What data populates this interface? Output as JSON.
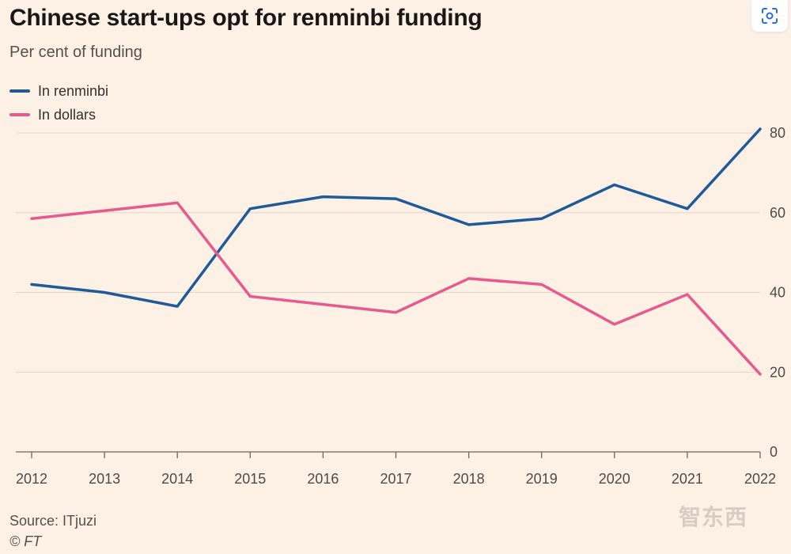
{
  "chart_data": {
    "type": "line",
    "title": "Chinese start-ups opt for renminbi funding",
    "subtitle": "Per cent of funding",
    "x": [
      "2012",
      "2013",
      "2014",
      "2015",
      "2016",
      "2017",
      "2018",
      "2019",
      "2020",
      "2021",
      "2022"
    ],
    "series": [
      {
        "name": "In renminbi",
        "color": "#1f5a99",
        "values": [
          42,
          40,
          36.5,
          61,
          64,
          63.5,
          57,
          58.5,
          67,
          61,
          81
        ]
      },
      {
        "name": "In dollars",
        "color": "#e8598d",
        "values": [
          58.5,
          60.5,
          62.5,
          39,
          37,
          35,
          43.5,
          42,
          32,
          39.5,
          19.5
        ]
      }
    ],
    "yticks": [
      "0",
      "20",
      "40",
      "60",
      "80"
    ],
    "ylim": [
      0,
      80
    ],
    "grid": true,
    "y_axis_side": "right",
    "legend_position": "top-left"
  },
  "footer": {
    "source": "Source: ITjuzi",
    "credit": "© FT"
  },
  "watermark": "智东西",
  "zoom_icon": "zoom-scan-icon"
}
